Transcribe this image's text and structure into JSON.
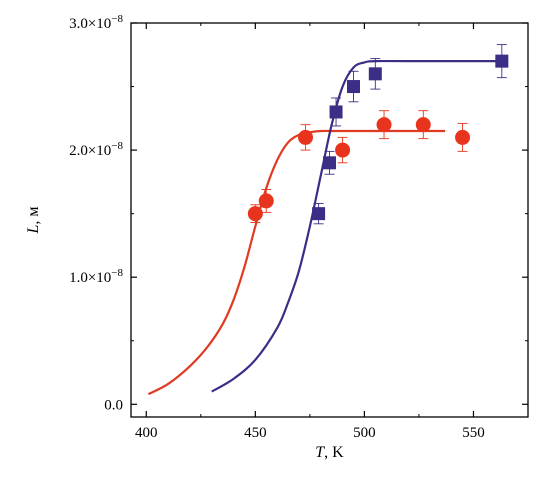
{
  "chart_data": {
    "type": "scatter",
    "xlabel": {
      "italic": "T",
      "rest": ", K"
    },
    "ylabel": {
      "italic": "L",
      "rest": ", м"
    },
    "xlim": [
      393,
      575
    ],
    "ylim": [
      -1e-09,
      3e-08
    ],
    "x_ticks": [
      400,
      450,
      500,
      550
    ],
    "x_tick_labels": [
      "400",
      "450",
      "500",
      "550"
    ],
    "y_ticks": [
      0,
      1e-08,
      2e-08,
      3e-08
    ],
    "y_tick_labels": [
      {
        "mant": "0.0",
        "exp": ""
      },
      {
        "mant": "1.0×10",
        "exp": "−8"
      },
      {
        "mant": "2.0×10",
        "exp": "−8"
      },
      {
        "mant": "3.0×10",
        "exp": "−8"
      }
    ],
    "grid": false,
    "series": [
      {
        "marker": "circle",
        "color": "#e8341c",
        "points": [
          {
            "x": 450,
            "y": 1.5e-08,
            "err": 7e-10
          },
          {
            "x": 455,
            "y": 1.6e-08,
            "err": 9e-10
          },
          {
            "x": 473,
            "y": 2.1e-08,
            "err": 1e-09
          },
          {
            "x": 490,
            "y": 2e-08,
            "err": 1e-09
          },
          {
            "x": 509,
            "y": 2.2e-08,
            "err": 1.1e-09
          },
          {
            "x": 527,
            "y": 2.2e-08,
            "err": 1.1e-09
          },
          {
            "x": 545,
            "y": 2.1e-08,
            "err": 1.1e-09
          }
        ],
        "fit": {
          "color": "#e03a22",
          "x": [
            401,
            410,
            420,
            428,
            435,
            440,
            445,
            450,
            455,
            460,
            465,
            470,
            475,
            480,
            490,
            510,
            537
          ],
          "y": [
            8e-10,
            1.6e-09,
            3e-09,
            4.5e-09,
            6.3e-09,
            8.2e-09,
            1.08e-08,
            1.4e-08,
            1.7e-08,
            1.92e-08,
            2.06e-08,
            2.12e-08,
            2.14e-08,
            2.15e-08,
            2.15e-08,
            2.15e-08,
            2.15e-08
          ]
        }
      },
      {
        "marker": "square",
        "color": "#3a2e86",
        "points": [
          {
            "x": 479,
            "y": 1.5e-08,
            "err": 8e-10
          },
          {
            "x": 484,
            "y": 1.9e-08,
            "err": 9e-10
          },
          {
            "x": 487,
            "y": 2.3e-08,
            "err": 1.1e-09
          },
          {
            "x": 495,
            "y": 2.5e-08,
            "err": 1.2e-09
          },
          {
            "x": 505,
            "y": 2.6e-08,
            "err": 1.2e-09
          },
          {
            "x": 563,
            "y": 2.7e-08,
            "err": 1.3e-09
          }
        ],
        "fit": {
          "color": "#3a2e86",
          "x": [
            430,
            440,
            450,
            460,
            465,
            470,
            475,
            480,
            485,
            490,
            495,
            500,
            505,
            520,
            563
          ],
          "y": [
            1e-09,
            2e-09,
            3.5e-09,
            6e-09,
            8e-09,
            1.05e-08,
            1.4e-08,
            1.8e-08,
            2.2e-08,
            2.5e-08,
            2.65e-08,
            2.69e-08,
            2.7e-08,
            2.7e-08,
            2.7e-08
          ]
        }
      }
    ]
  }
}
